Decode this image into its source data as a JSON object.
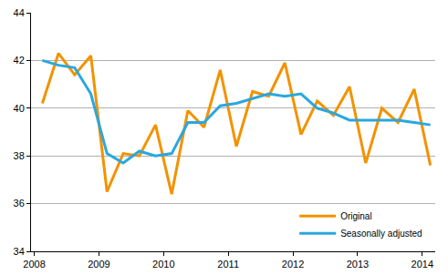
{
  "chart_data": {
    "type": "line",
    "x": [
      2008.125,
      2008.375,
      2008.625,
      2008.875,
      2009.125,
      2009.375,
      2009.625,
      2009.875,
      2010.125,
      2010.375,
      2010.625,
      2010.875,
      2011.125,
      2011.375,
      2011.625,
      2011.875,
      2012.125,
      2012.375,
      2012.625,
      2012.875,
      2013.125,
      2013.375,
      2013.625,
      2013.875,
      2014.125
    ],
    "series": [
      {
        "name": "Original",
        "color": "#f39200",
        "values": [
          40.2,
          42.3,
          41.4,
          42.2,
          36.5,
          38.1,
          38.0,
          39.3,
          36.4,
          39.9,
          39.2,
          41.6,
          38.4,
          40.7,
          40.5,
          41.9,
          38.9,
          40.3,
          39.7,
          40.9,
          37.7,
          40.0,
          39.4,
          40.8,
          37.6
        ]
      },
      {
        "name": "Seasonally adjusted",
        "color": "#2aa7de",
        "values": [
          42.0,
          41.8,
          41.7,
          40.6,
          38.1,
          37.7,
          38.2,
          38.0,
          38.1,
          39.4,
          39.4,
          40.1,
          40.2,
          40.4,
          40.6,
          40.5,
          40.6,
          40.0,
          39.8,
          39.5,
          39.5,
          39.5,
          39.5,
          39.4,
          39.3
        ]
      }
    ],
    "xlim": [
      2007.95,
      2014.2
    ],
    "xticks": [
      2008,
      2009,
      2010,
      2011,
      2012,
      2013,
      2014
    ],
    "ylim": [
      34,
      44
    ],
    "yticks": [
      34,
      36,
      38,
      40,
      42,
      44
    ],
    "grid": true,
    "legend": "lower right"
  }
}
